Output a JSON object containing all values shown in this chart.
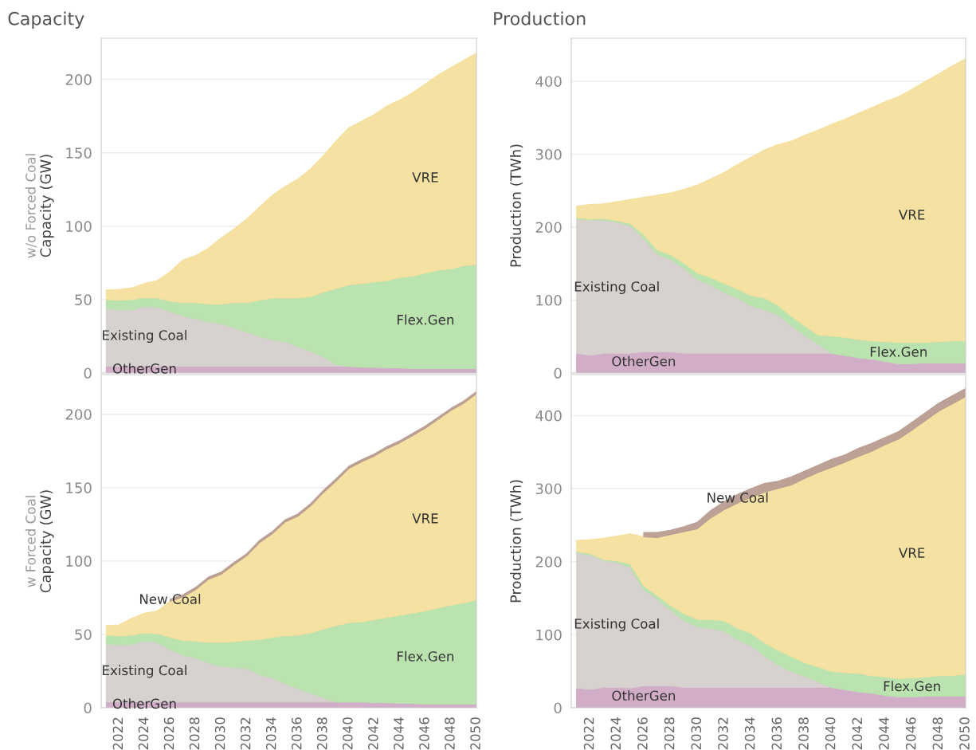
{
  "chart_data": [
    {
      "type": "area",
      "stacked": true,
      "title": "Capacity",
      "subtitle": "w/o Forced Coal",
      "ylabel": "Capacity (GW)",
      "x": [
        2021,
        2022,
        2023,
        2024,
        2025,
        2026,
        2027,
        2028,
        2029,
        2030,
        2031,
        2032,
        2033,
        2034,
        2035,
        2036,
        2037,
        2038,
        2039,
        2040,
        2041,
        2042,
        2043,
        2044,
        2045,
        2046,
        2047,
        2048,
        2049,
        2050
      ],
      "xlim": [
        2020.6,
        2050
      ],
      "xticks": [
        2022,
        2024,
        2026,
        2028,
        2030,
        2032,
        2034,
        2036,
        2038,
        2040,
        2042,
        2044,
        2046,
        2048,
        2050
      ],
      "ylim": [
        0,
        228
      ],
      "yticks": [
        0,
        50,
        100,
        150,
        200
      ],
      "grid": "y",
      "legend": false,
      "tick_labels": "y",
      "series": [
        {
          "name": "OtherGen",
          "color": "#cfa9c5",
          "values": [
            4.5,
            4.5,
            4.5,
            4.5,
            4.5,
            4.5,
            4.5,
            4.5,
            4.5,
            4.5,
            4.5,
            4.5,
            4.5,
            4.5,
            4.5,
            4.5,
            4.5,
            4.5,
            4.5,
            4.5,
            4,
            4,
            3.5,
            3.5,
            3,
            3,
            3,
            3,
            3,
            3
          ]
        },
        {
          "name": "Existing Coal",
          "color": "#d5cfcc",
          "values": [
            39.5,
            38.5,
            38.5,
            41,
            40.5,
            37.5,
            34.5,
            32.5,
            30.5,
            29,
            26.5,
            23.5,
            20.5,
            18,
            17,
            13.5,
            10.5,
            6.5,
            1.5,
            0,
            0,
            0,
            0,
            0,
            0,
            0,
            0,
            0,
            0,
            0
          ]
        },
        {
          "name": "Flex.Gen",
          "color": "#b7e1ac",
          "values": [
            6,
            6.5,
            7,
            6,
            6,
            7,
            9,
            11,
            12,
            13.5,
            17,
            20,
            24.5,
            28.5,
            29.5,
            33,
            37,
            44,
            51.5,
            55.5,
            57,
            58,
            59.5,
            61.5,
            63,
            65,
            67,
            68,
            70,
            71
          ]
        },
        {
          "name": "VRE",
          "color": "#f4df9d",
          "values": [
            6.5,
            7.5,
            8,
            9.5,
            12,
            20,
            29,
            32,
            38,
            45,
            50,
            57,
            63.5,
            70,
            76,
            81,
            87,
            93,
            100.5,
            107,
            110.5,
            114,
            119,
            121,
            125,
            129,
            133,
            137,
            140,
            144
          ]
        }
      ]
    },
    {
      "type": "area",
      "stacked": true,
      "title": "Production",
      "ylabel": "Production (TWh)",
      "x": [
        2021,
        2022,
        2023,
        2024,
        2025,
        2026,
        2027,
        2028,
        2029,
        2030,
        2031,
        2032,
        2033,
        2034,
        2035,
        2036,
        2037,
        2038,
        2039,
        2040,
        2041,
        2042,
        2043,
        2044,
        2045,
        2046,
        2047,
        2048,
        2049,
        2050
      ],
      "xlim": [
        2020.6,
        2050
      ],
      "xticks": [
        2022,
        2024,
        2026,
        2028,
        2030,
        2032,
        2034,
        2036,
        2038,
        2040,
        2042,
        2044,
        2046,
        2048,
        2050
      ],
      "ylim": [
        0,
        459
      ],
      "yticks": [
        0,
        100,
        200,
        300,
        400
      ],
      "grid": "y",
      "legend": false,
      "tick_labels": "y",
      "series": [
        {
          "name": "OtherGen",
          "color": "#cfa9c5",
          "values": [
            27,
            24,
            27,
            27,
            27,
            29,
            29,
            29,
            27,
            27,
            27,
            27,
            27,
            27,
            27,
            27,
            27,
            27,
            27,
            27,
            24,
            21,
            19,
            16,
            13,
            13,
            14,
            14,
            14,
            14
          ]
        },
        {
          "name": "Existing Coal",
          "color": "#d5cfcc",
          "values": [
            184,
            186,
            183,
            180,
            175,
            156,
            134,
            127,
            117,
            101,
            94,
            83,
            76,
            65,
            60,
            53,
            38,
            25,
            13,
            0,
            0,
            0,
            0,
            0,
            0,
            0,
            0,
            0,
            0,
            0
          ]
        },
        {
          "name": "Flex.Gen",
          "color": "#b7e1ac",
          "values": [
            2,
            1,
            2,
            2,
            3,
            5,
            6,
            6,
            7,
            9,
            10,
            13,
            12,
            14,
            16,
            13,
            13,
            13,
            12,
            24,
            25,
            25,
            25,
            27,
            29,
            29,
            28,
            29,
            30,
            30
          ]
        },
        {
          "name": "VRE",
          "color": "#f4df9d",
          "values": [
            16,
            20,
            20,
            26,
            33,
            51,
            75,
            85,
            101,
            121,
            135,
            152,
            171,
            190,
            203,
            220,
            240,
            261,
            281,
            290,
            299,
            310,
            320,
            329,
            337,
            347,
            358,
            367,
            377,
            387
          ]
        }
      ]
    },
    {
      "type": "area",
      "stacked": true,
      "subtitle": "w Forced Coal",
      "ylabel": "Capacity (GW)",
      "x": [
        2021,
        2022,
        2023,
        2024,
        2025,
        2026,
        2027,
        2028,
        2029,
        2030,
        2031,
        2032,
        2033,
        2034,
        2035,
        2036,
        2037,
        2038,
        2039,
        2040,
        2041,
        2042,
        2043,
        2044,
        2045,
        2046,
        2047,
        2048,
        2049,
        2050
      ],
      "xlim": [
        2020.6,
        2050
      ],
      "xticks": [
        2022,
        2024,
        2026,
        2028,
        2030,
        2032,
        2034,
        2036,
        2038,
        2040,
        2042,
        2044,
        2046,
        2048,
        2050
      ],
      "ylim": [
        0,
        227
      ],
      "yticks": [
        0,
        50,
        100,
        150,
        200
      ],
      "grid": "y",
      "legend": false,
      "series": [
        {
          "name": "OtherGen",
          "color": "#cfa9c5",
          "values": [
            4,
            4,
            4,
            4,
            4,
            4,
            4,
            4,
            4,
            4,
            4,
            4,
            4,
            4,
            4,
            4,
            4,
            4,
            4,
            4,
            4,
            3.5,
            3.5,
            3,
            3,
            2.5,
            2.5,
            2.5,
            2.5,
            2.5
          ]
        },
        {
          "name": "Existing Coal",
          "color": "#d5cfcc",
          "values": [
            39.5,
            39,
            39,
            41.5,
            40.5,
            35.5,
            32,
            30,
            26.5,
            24.5,
            23.5,
            23,
            18.5,
            16.5,
            12.5,
            9,
            6,
            3,
            0,
            0,
            0,
            0,
            0,
            0,
            0,
            0,
            0,
            0,
            0,
            0
          ]
        },
        {
          "name": "Flex.Gen",
          "color": "#b7e1ac",
          "values": [
            6,
            6,
            6.5,
            5.5,
            6,
            8.5,
            10,
            11.5,
            14,
            16,
            17.5,
            19,
            24,
            27.5,
            32.5,
            36.5,
            41,
            46.5,
            52,
            54,
            54.5,
            56.5,
            58,
            60,
            61.5,
            63.5,
            65.5,
            67.5,
            69,
            71
          ]
        },
        {
          "name": "VRE",
          "color": "#f4df9d",
          "values": [
            6.5,
            7.5,
            11.5,
            13.5,
            15.5,
            24.5,
            29.5,
            35,
            43,
            46.5,
            52.5,
            57.5,
            66,
            70.5,
            77.5,
            81,
            86.5,
            93,
            98.5,
            105,
            109,
            111.5,
            115,
            117.5,
            121,
            124.5,
            128.5,
            132.5,
            136,
            140.5
          ]
        },
        {
          "name": "New Coal",
          "color": "#b89c90",
          "values": [
            null,
            null,
            null,
            null,
            null,
            1.5,
            1.5,
            1.5,
            1.5,
            1.5,
            1.5,
            1.5,
            1.5,
            1.5,
            1.5,
            1.5,
            1.5,
            1.5,
            1.5,
            1.5,
            1.5,
            1.5,
            1.5,
            1.5,
            1.5,
            1.5,
            1.5,
            1.5,
            1.5,
            1.5
          ]
        }
      ]
    },
    {
      "type": "area",
      "stacked": true,
      "ylabel": "Production (TWh)",
      "x": [
        2021,
        2022,
        2023,
        2024,
        2025,
        2026,
        2027,
        2028,
        2029,
        2030,
        2031,
        2032,
        2033,
        2034,
        2035,
        2036,
        2037,
        2038,
        2039,
        2040,
        2041,
        2042,
        2043,
        2044,
        2045,
        2046,
        2047,
        2048,
        2049,
        2050
      ],
      "xlim": [
        2020.6,
        2050
      ],
      "xticks": [
        2022,
        2024,
        2026,
        2028,
        2030,
        2032,
        2034,
        2036,
        2038,
        2040,
        2042,
        2044,
        2046,
        2048,
        2050
      ],
      "ylim": [
        0,
        456
      ],
      "yticks": [
        0,
        100,
        200,
        300,
        400
      ],
      "grid": "y",
      "legend": false,
      "series": [
        {
          "name": "OtherGen",
          "color": "#cfa9c5",
          "values": [
            27,
            25,
            28,
            28,
            27,
            30,
            30,
            30,
            28,
            28,
            28,
            28,
            28,
            28,
            28,
            28,
            28,
            28,
            28,
            28,
            25,
            22,
            20,
            17,
            15,
            15,
            16,
            16,
            16,
            16
          ]
        },
        {
          "name": "Existing Coal",
          "color": "#d5cfcc",
          "values": [
            185,
            184,
            174,
            171,
            165,
            132,
            119,
            104,
            91,
            83,
            81,
            77,
            65,
            57,
            43,
            31,
            22,
            15,
            8,
            0,
            0,
            0,
            0,
            0,
            0,
            0,
            0,
            0,
            0,
            0
          ]
        },
        {
          "name": "Flex.Gen",
          "color": "#b7e1ac",
          "values": [
            2,
            2,
            1,
            2,
            5,
            5,
            5,
            6,
            10,
            10,
            12,
            14,
            16,
            17,
            18,
            20,
            20,
            19,
            20,
            22,
            23,
            25,
            24,
            25,
            25,
            26,
            26,
            28,
            28,
            30
          ]
        },
        {
          "name": "VRE",
          "color": "#f4df9d",
          "values": [
            15,
            19,
            29,
            34,
            41,
            67,
            79,
            97,
            112,
            124,
            139,
            152,
            171,
            186,
            206,
            221,
            235,
            252,
            266,
            279,
            288,
            297,
            307,
            318,
            328,
            339,
            351,
            362,
            372,
            380
          ]
        },
        {
          "name": "New Coal",
          "color": "#b89c90",
          "values": [
            null,
            null,
            null,
            null,
            null,
            6,
            7,
            6,
            7,
            9,
            10,
            11,
            12,
            12,
            12,
            10,
            11,
            10,
            10,
            11,
            10,
            11,
            11,
            10,
            10,
            11,
            11,
            11,
            11,
            11
          ]
        }
      ]
    }
  ]
}
